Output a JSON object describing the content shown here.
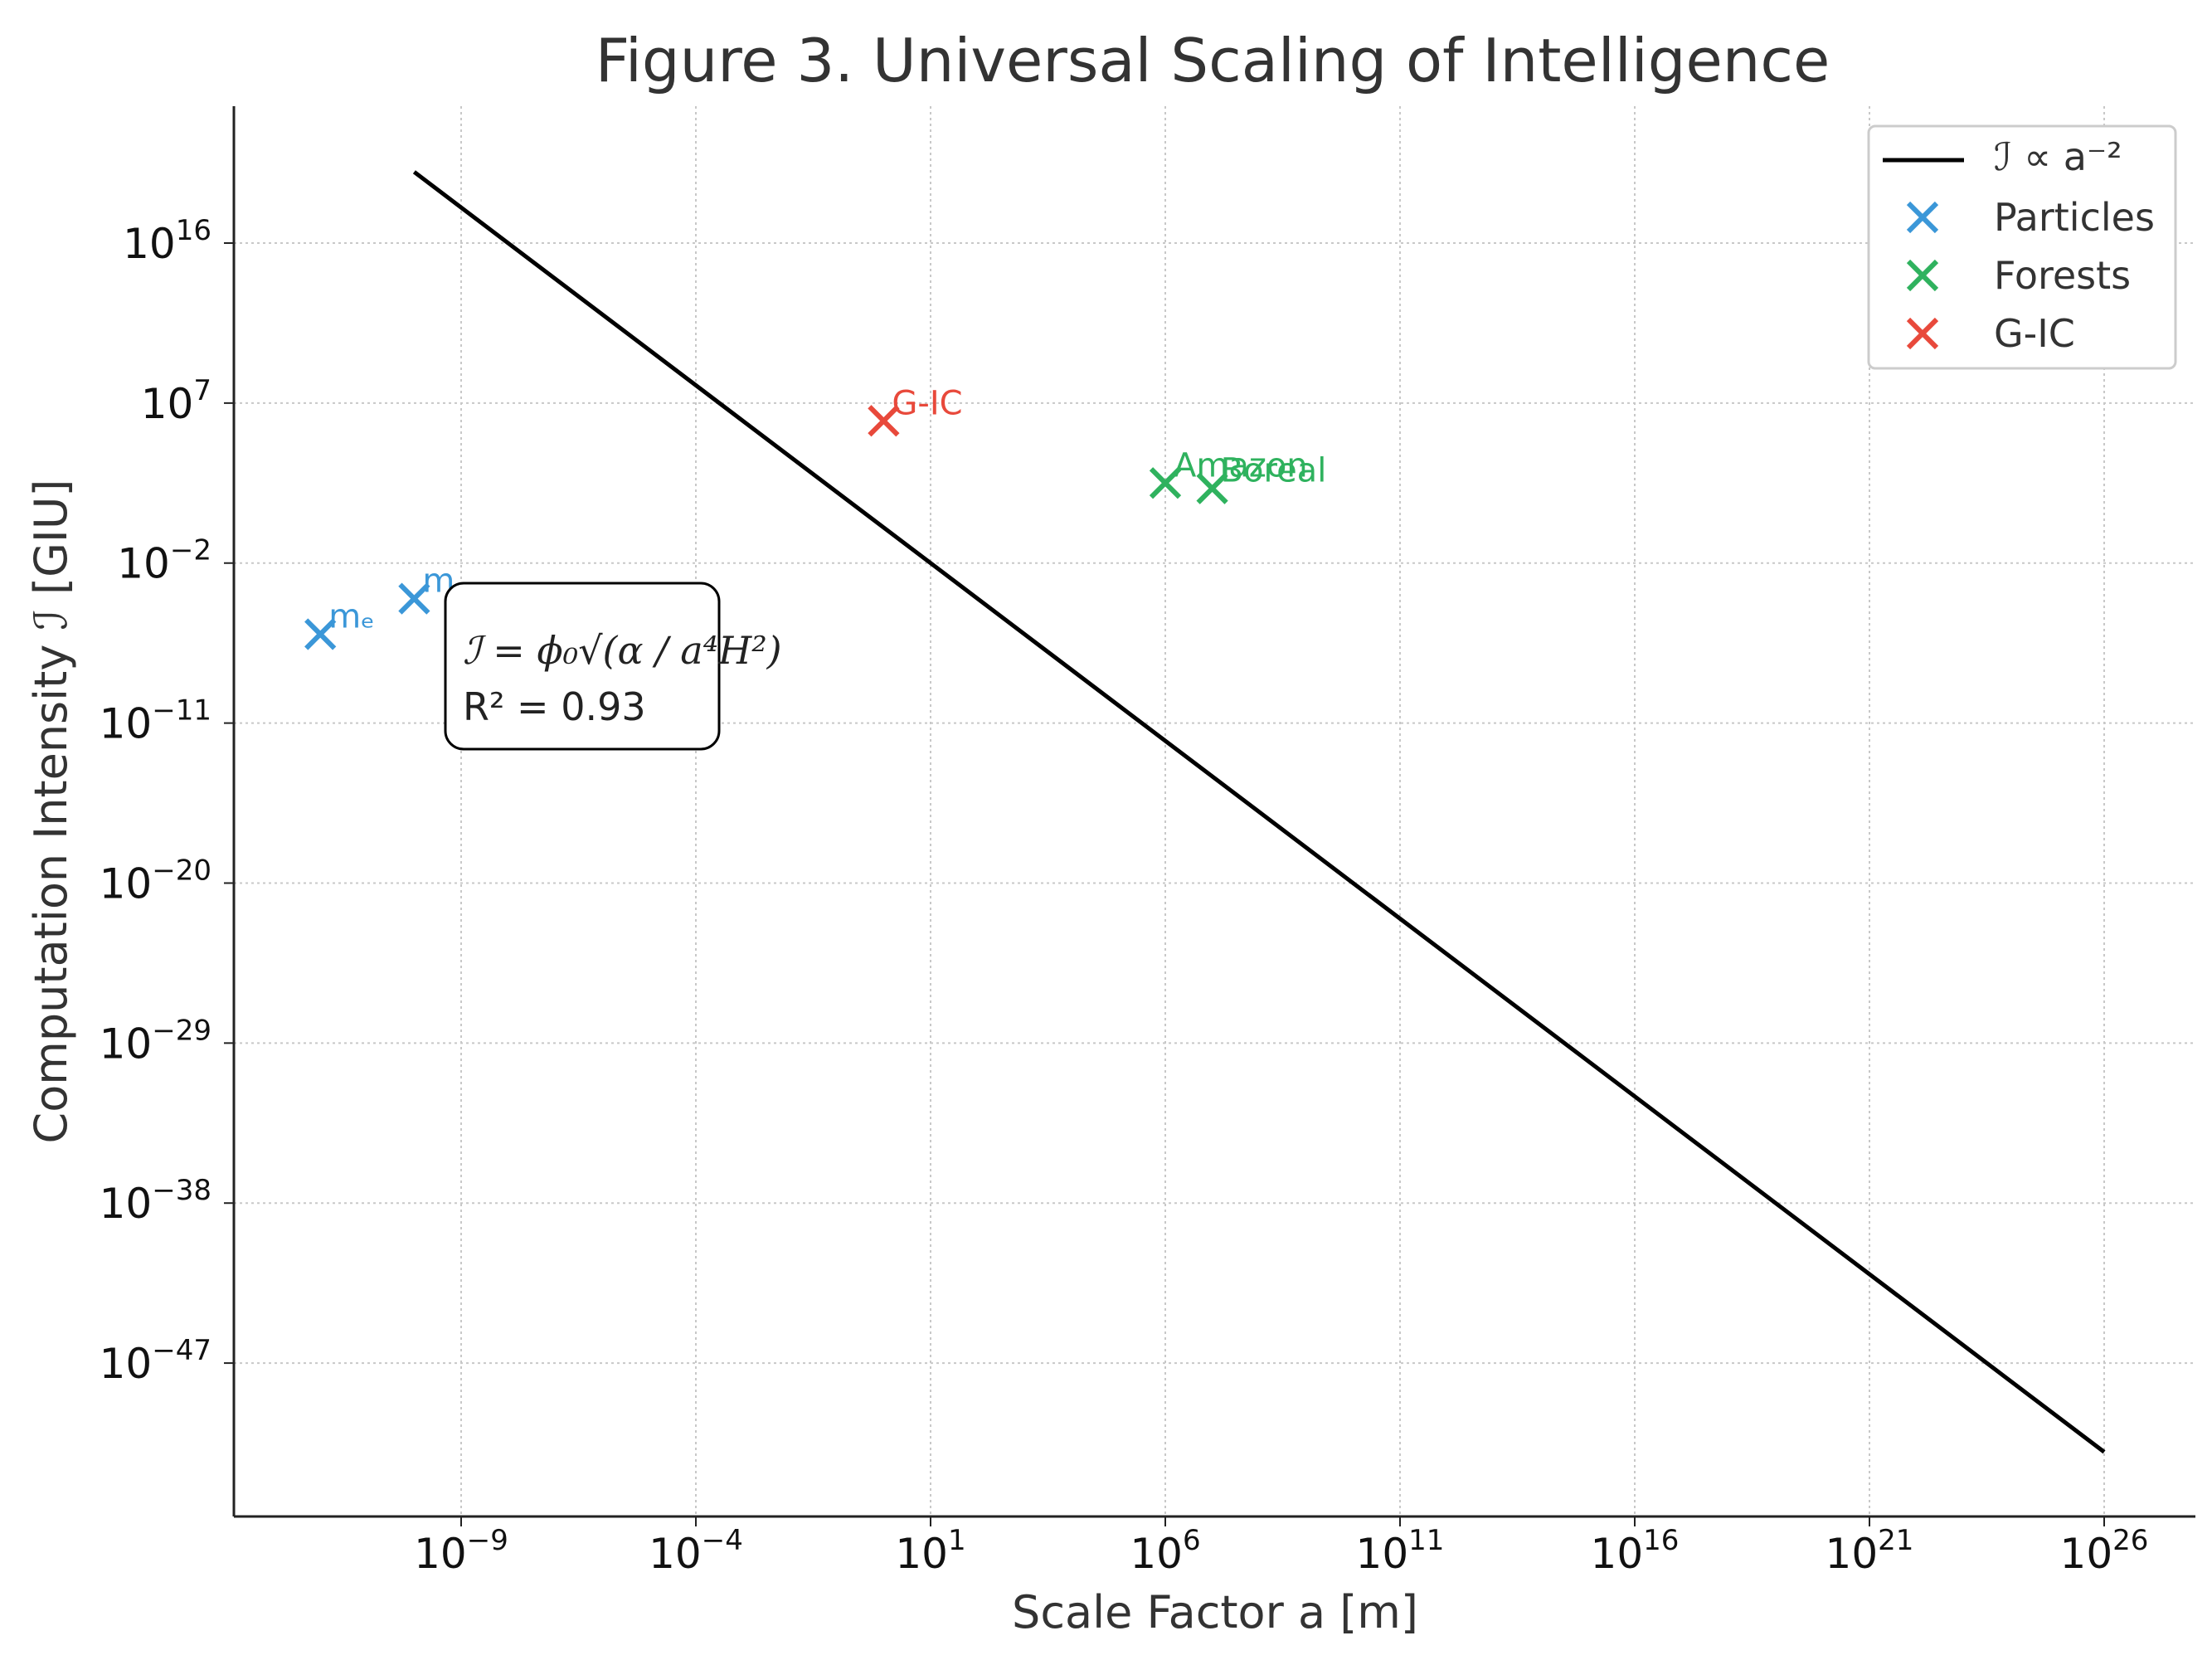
{
  "chart_data": {
    "type": "scatter",
    "title": "Figure 3. Universal Scaling of Intelligence",
    "xlabel": "Scale Factor a [m]",
    "ylabel": "Computation Intensity ℐ [GIU]",
    "xscale": "log",
    "yscale": "log",
    "xlim_exp": [
      -14,
      27
    ],
    "ylim_exp": [
      -55,
      24
    ],
    "xtick_exps": [
      -9,
      -4,
      1,
      6,
      11,
      16,
      21,
      26
    ],
    "ytick_exps": [
      16,
      7,
      -2,
      -11,
      -20,
      -29,
      -38,
      -47
    ],
    "tick_base": "10",
    "grid": true,
    "legend_position": "top-right",
    "line": {
      "name": "ℐ ∝ a⁻²",
      "x_exp": [
        -10,
        26
      ],
      "y_exp": [
        20,
        -52
      ],
      "color": "#000000"
    },
    "series": [
      {
        "name": "Particles",
        "color": "#3b97d8",
        "points": [
          {
            "label": "mₑ",
            "x_exp": -12,
            "y_exp": -6
          },
          {
            "label": "m",
            "x_exp": -10,
            "y_exp": -4
          }
        ]
      },
      {
        "name": "Forests",
        "color": "#2fb25e",
        "points": [
          {
            "label": "Amazon",
            "x_exp": 6,
            "y_exp": 2.5
          },
          {
            "label": "Boreal",
            "x_exp": 7,
            "y_exp": 2.2
          }
        ]
      },
      {
        "name": "G-IC",
        "color": "#e8493b",
        "points": [
          {
            "label": "G-IC",
            "x_exp": 0,
            "y_exp": 6
          }
        ]
      }
    ],
    "annotation": {
      "formula": "ℐ = ϕ₀√(α / a⁴H²)",
      "r2": "R² = 0.93"
    }
  }
}
